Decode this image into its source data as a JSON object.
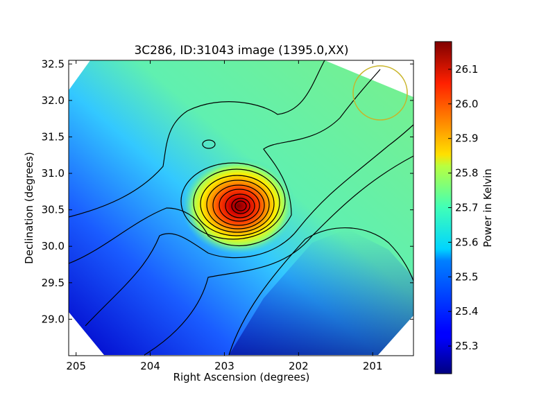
{
  "chart_data": {
    "type": "heatmap",
    "title": "3C286, ID:31043 image (1395.0,XX)",
    "xlabel": "Right Ascension (degrees)",
    "ylabel": "Declination (degrees)",
    "xlim": [
      205.1,
      200.45
    ],
    "ylim": [
      28.5,
      32.55
    ],
    "xticks": [
      205,
      204,
      203,
      202,
      201
    ],
    "yticks": [
      29.0,
      29.5,
      30.0,
      30.5,
      31.0,
      31.5,
      32.0,
      32.5
    ],
    "colorbar": {
      "label": "Power in Kelvin",
      "range": [
        25.22,
        26.18
      ],
      "ticks": [
        25.3,
        25.4,
        25.5,
        25.6,
        25.7,
        25.8,
        25.9,
        26.0,
        26.1
      ]
    },
    "peak": {
      "ra": 202.8,
      "dec": 30.53,
      "value": 26.15
    },
    "secondary_feature": {
      "ra": 203.25,
      "dec": 31.37
    },
    "beam_circle": {
      "ra": 200.9,
      "dec": 32.05,
      "radius_deg": 0.37,
      "color": "#c8b428"
    },
    "colormap": "jet"
  }
}
